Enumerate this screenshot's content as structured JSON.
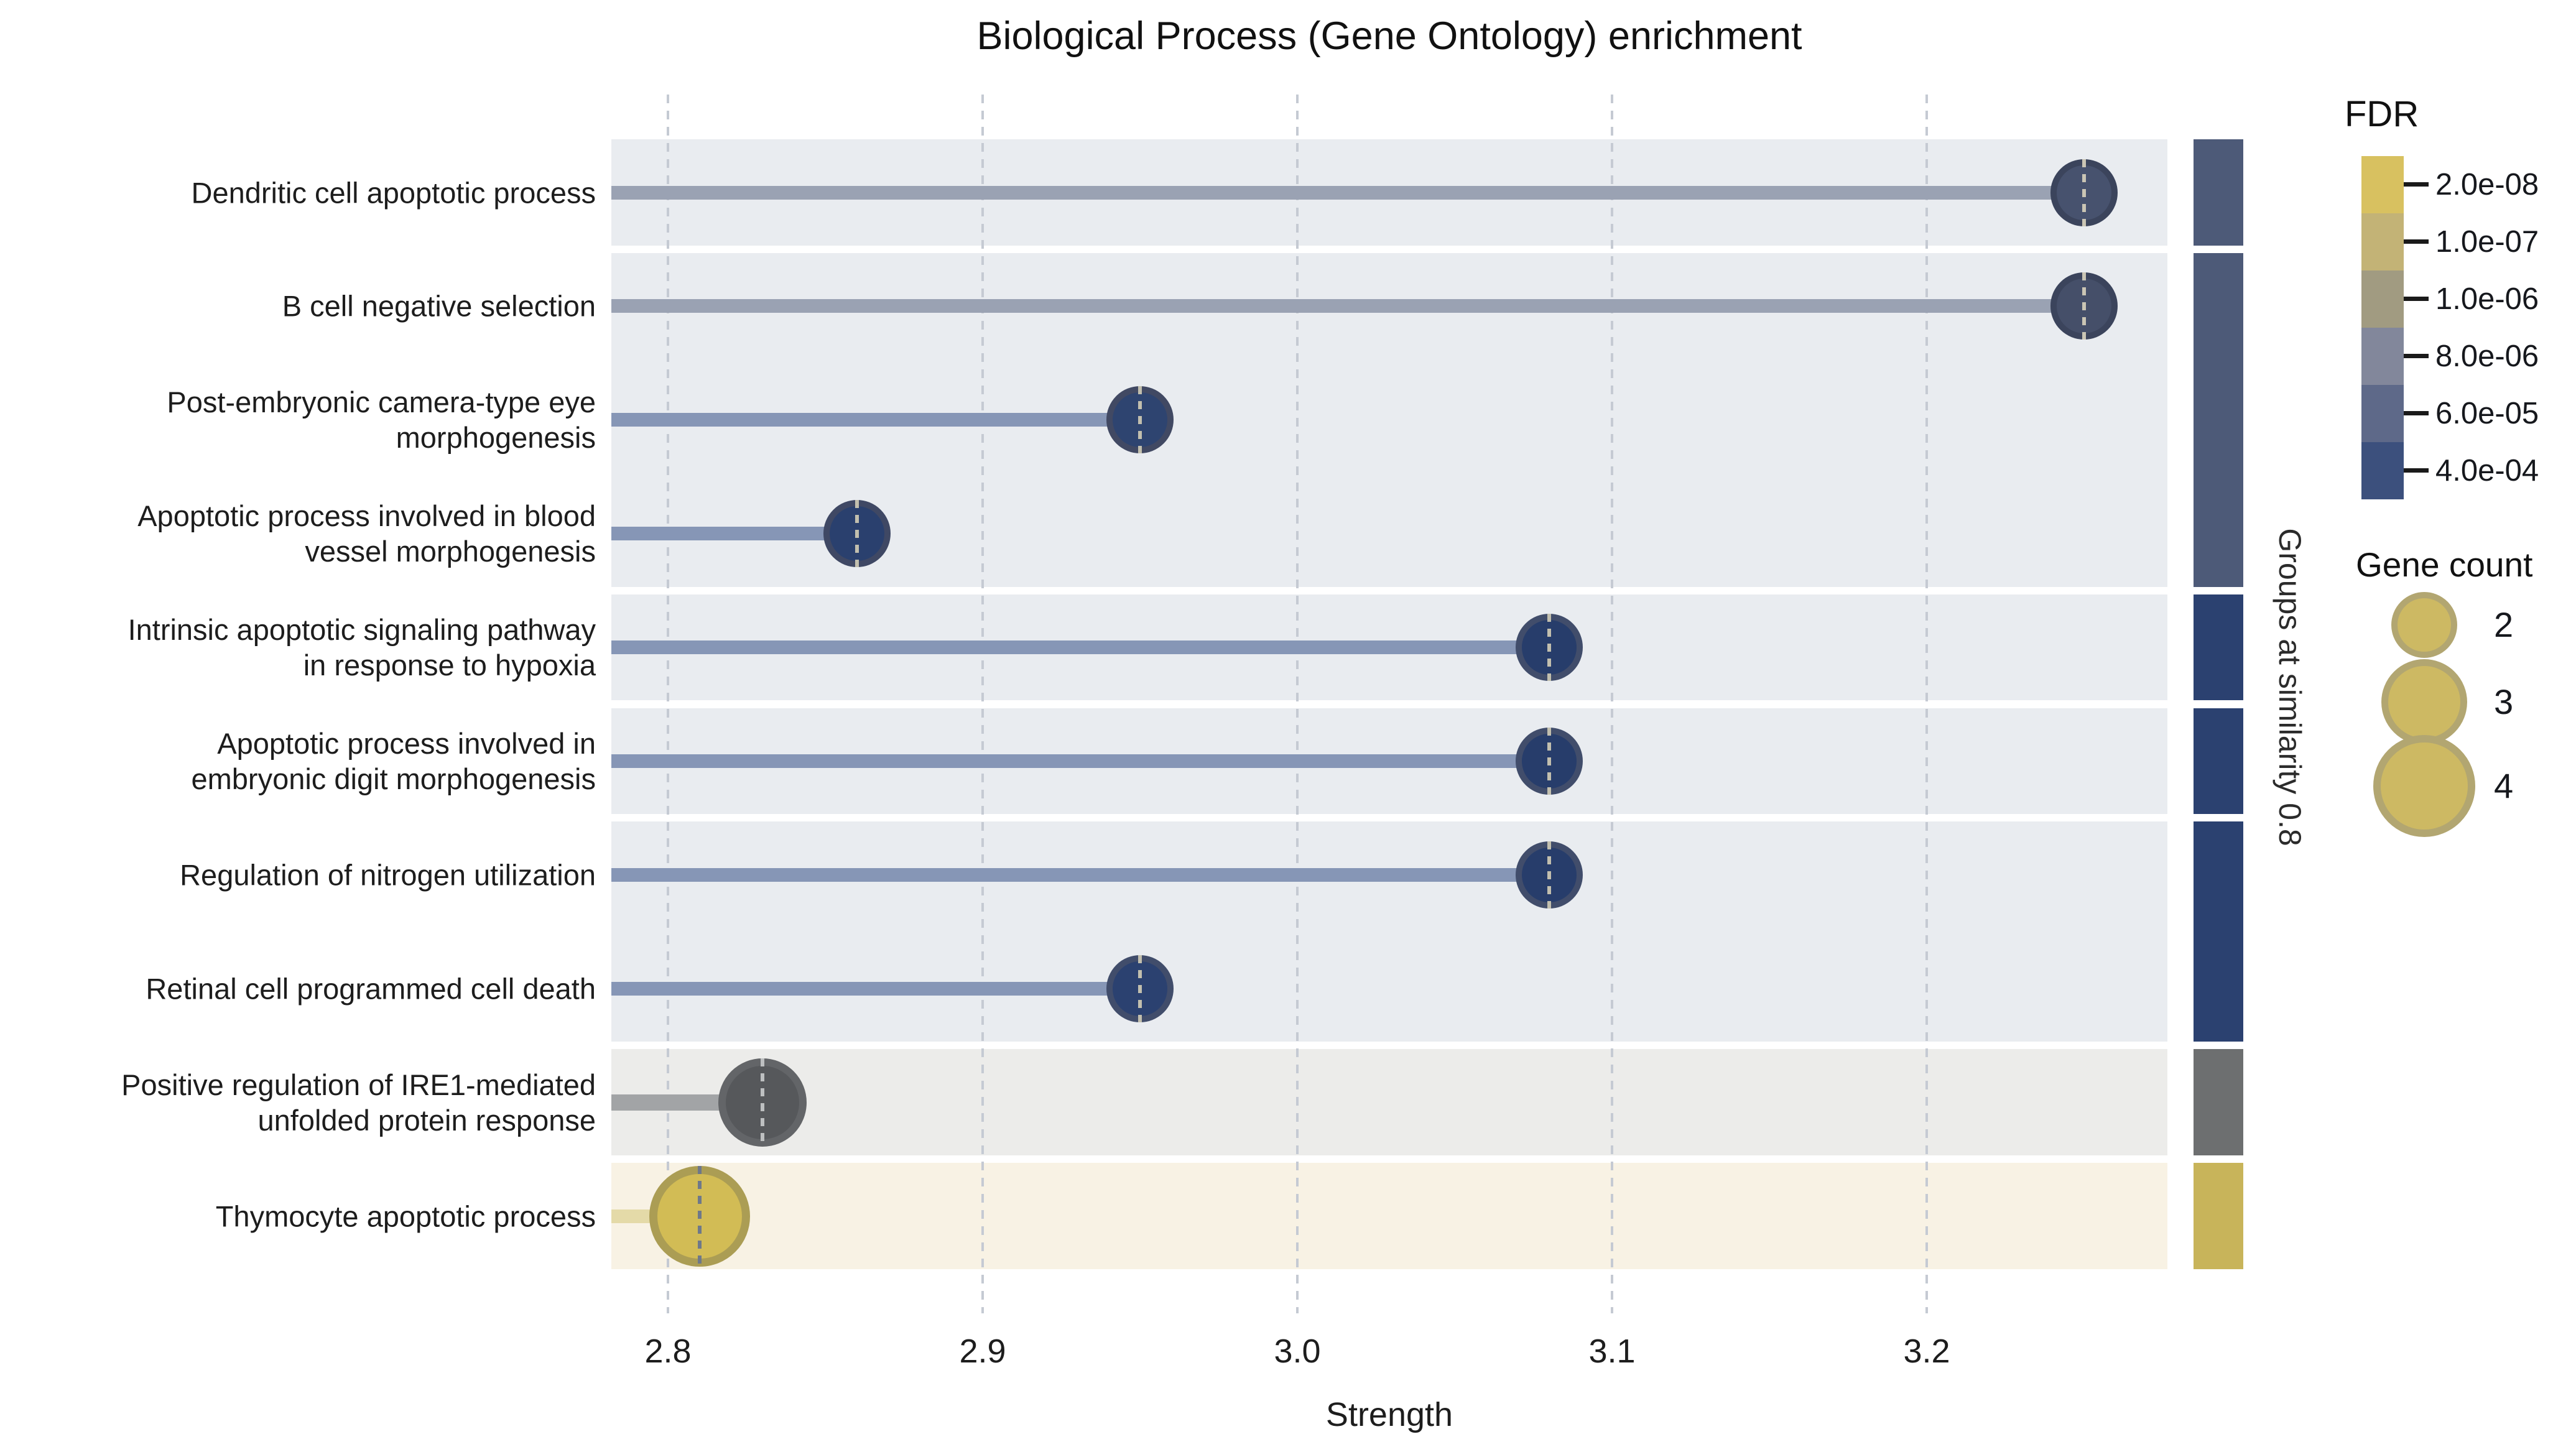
{
  "title": "Biological Process (Gene Ontology) enrichment",
  "x_axis": {
    "label": "Strength",
    "tick_labels": [
      "2.8",
      "2.9",
      "3.0",
      "3.1",
      "3.2"
    ]
  },
  "right_axis_label": "Groups at similarity 0.8",
  "fdr_legend": {
    "title": "FDR",
    "entries": [
      {
        "label": "2.0e-08",
        "color": "#d8c160"
      },
      {
        "label": "1.0e-07",
        "color": "#c3b376"
      },
      {
        "label": "1.0e-06",
        "color": "#a19b81"
      },
      {
        "label": "8.0e-06",
        "color": "#82879b"
      },
      {
        "label": "6.0e-05",
        "color": "#5e6989"
      },
      {
        "label": "4.0e-04",
        "color": "#3c507d"
      }
    ]
  },
  "gene_legend": {
    "title": "Gene count",
    "fill": "#cdb963",
    "ring": "#b2a671",
    "items": [
      {
        "label": "2",
        "radius": 53
      },
      {
        "label": "3",
        "radius": 69
      },
      {
        "label": "4",
        "radius": 82
      }
    ]
  },
  "chart_data": {
    "type": "lollipop",
    "title": "Biological Process (Gene Ontology) enrichment",
    "xlabel": "Strength",
    "xlim": [
      2.78,
      3.28
    ],
    "x_ticks": [
      2.8,
      2.9,
      3.0,
      3.1,
      3.2
    ],
    "grid": "dashed-vertical",
    "rows": [
      {
        "term": "Dendritic cell apoptotic process",
        "label_lines": [
          "Dendritic cell apoptotic process"
        ],
        "strength": 3.25,
        "gene_count": 2,
        "dot_fill": "#47526e",
        "dot_ring": "#3b445c",
        "stem": "#9aa2b3",
        "dash": "#cac5b4"
      },
      {
        "term": "B cell negative selection",
        "label_lines": [
          "B cell negative selection"
        ],
        "strength": 3.25,
        "gene_count": 2,
        "dot_fill": "#454f69",
        "dot_ring": "#3b445c",
        "stem": "#9aa2b3",
        "dash": "#cac5b4"
      },
      {
        "term": "Post-embryonic camera-type eye morphogenesis",
        "label_lines": [
          "Post-embryonic camera-type eye",
          "morphogenesis"
        ],
        "strength": 2.95,
        "gene_count": 2,
        "dot_fill": "#2e4470",
        "dot_ring": "#414963",
        "stem": "#8696b6",
        "dash": "#c2bfae"
      },
      {
        "term": "Apoptotic process involved in blood vessel morphogenesis",
        "label_lines": [
          "Apoptotic process involved in blood",
          "vessel morphogenesis"
        ],
        "strength": 2.86,
        "gene_count": 2,
        "dot_fill": "#2a406e",
        "dot_ring": "#3f4864",
        "stem": "#8696b6",
        "dash": "#c2bfae"
      },
      {
        "term": "Intrinsic apoptotic signaling pathway in response to hypoxia",
        "label_lines": [
          "Intrinsic apoptotic signaling pathway",
          "in response to hypoxia"
        ],
        "strength": 3.08,
        "gene_count": 2,
        "dot_fill": "#273d6b",
        "dot_ring": "#414d6b",
        "stem": "#8696b6",
        "dash": "#c2bfae"
      },
      {
        "term": "Apoptotic process involved in embryonic digit morphogenesis",
        "label_lines": [
          "Apoptotic process involved in",
          "embryonic digit morphogenesis"
        ],
        "strength": 3.08,
        "gene_count": 2,
        "dot_fill": "#273d6b",
        "dot_ring": "#414d6b",
        "stem": "#8696b6",
        "dash": "#c2bfae"
      },
      {
        "term": "Regulation of nitrogen utilization",
        "label_lines": [
          "Regulation of nitrogen utilization"
        ],
        "strength": 3.08,
        "gene_count": 2,
        "dot_fill": "#273d6b",
        "dot_ring": "#414d6b",
        "stem": "#8696b6",
        "dash": "#c2bfae"
      },
      {
        "term": "Retinal cell programmed cell death",
        "label_lines": [
          "Retinal cell programmed cell death"
        ],
        "strength": 2.95,
        "gene_count": 2,
        "dot_fill": "#2b4170",
        "dot_ring": "#414d6b",
        "stem": "#8696b6",
        "dash": "#c2bfae"
      },
      {
        "term": "Positive regulation of IRE1-mediated unfolded protein response",
        "label_lines": [
          "Positive regulation of IRE1-mediated",
          "unfolded protein response"
        ],
        "strength": 2.83,
        "gene_count": 3,
        "dot_fill": "#56585b",
        "dot_ring": "#636568",
        "stem": "#a2a4a6",
        "dash": "#bdbfc0"
      },
      {
        "term": "Thymocyte apoptotic process",
        "label_lines": [
          "Thymocyte apoptotic process"
        ],
        "strength": 2.81,
        "gene_count": 4,
        "dot_fill": "#d2bc55",
        "dot_ring": "#ab9d54",
        "stem": "#e4daa8",
        "dash": "#6f7889"
      }
    ],
    "groups": [
      {
        "rows": [
          0
        ],
        "band": "#e9ecf0",
        "strip": "#4d5a78"
      },
      {
        "rows": [
          1,
          2,
          3
        ],
        "band": "#e9ecf0",
        "strip": "#4d5a78"
      },
      {
        "rows": [
          4
        ],
        "band": "#e9ecf0",
        "strip": "#2b4170"
      },
      {
        "rows": [
          5
        ],
        "band": "#e9ecf0",
        "strip": "#2b4170"
      },
      {
        "rows": [
          6,
          7
        ],
        "band": "#e9ecf0",
        "strip": "#2b4170"
      },
      {
        "rows": [
          8
        ],
        "band": "#ececea",
        "strip": "#6d6f70"
      },
      {
        "rows": [
          9
        ],
        "band": "#f8f2e4",
        "strip": "#c8b45a"
      }
    ]
  }
}
